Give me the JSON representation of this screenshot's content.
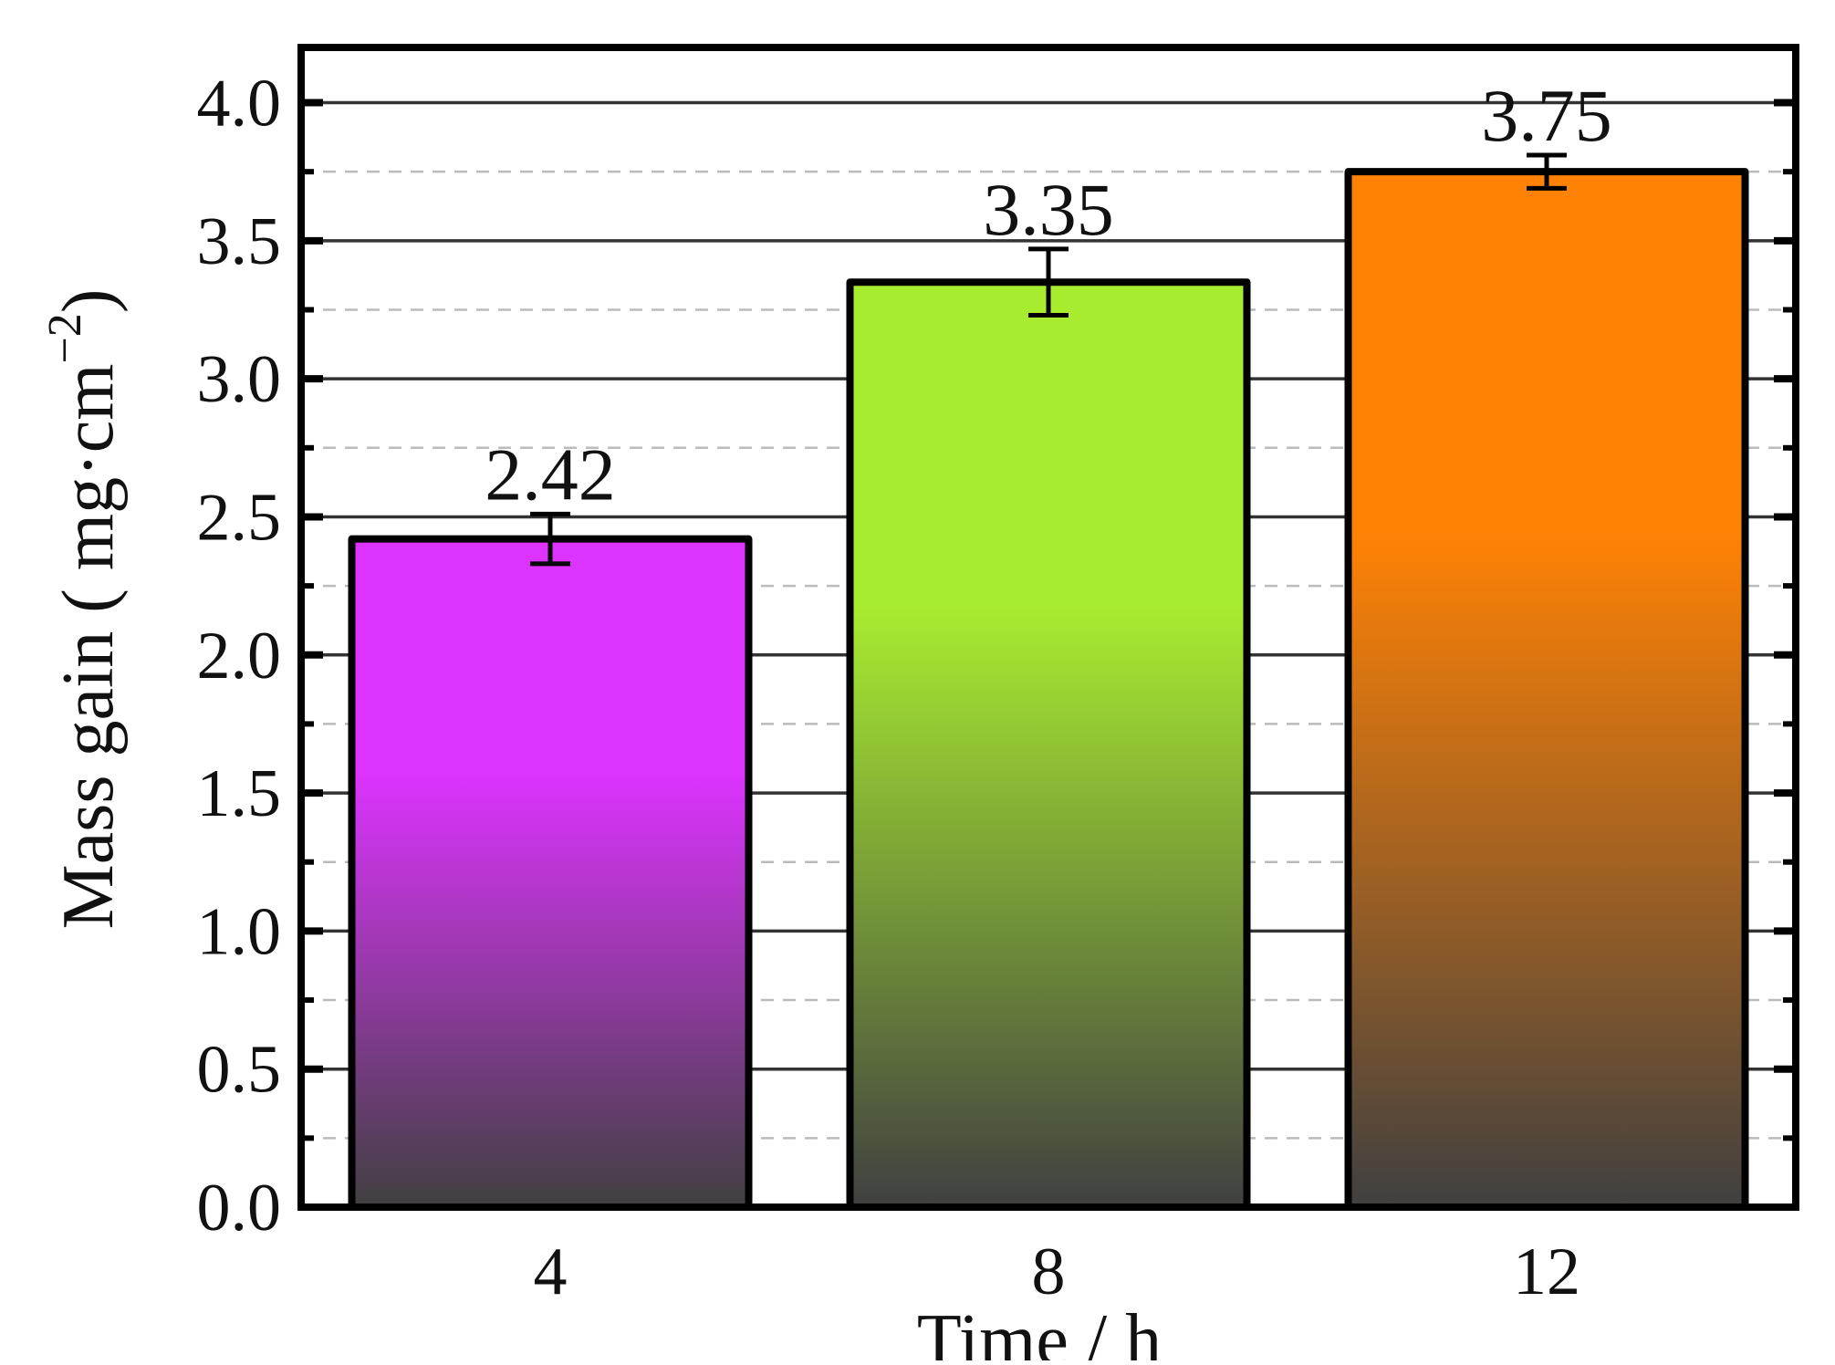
{
  "chart_data": {
    "type": "bar",
    "xlabel": "Time / h",
    "ylabel": "Mass gain ( mg·cm",
    "ylabel_superscript": "−2",
    "ylabel_close": ")",
    "categories": [
      "4",
      "8",
      "12"
    ],
    "values": [
      2.42,
      3.35,
      3.75
    ],
    "value_labels": [
      "2.42",
      "3.35",
      "3.75"
    ],
    "errors": [
      0.09,
      0.12,
      0.06
    ],
    "ylim": [
      0,
      4.2
    ],
    "yticks": [
      0.0,
      0.5,
      1.0,
      1.5,
      2.0,
      2.5,
      3.0,
      3.5,
      4.0
    ],
    "ytick_labels": [
      "0.0",
      "0.5",
      "1.0",
      "1.5",
      "2.0",
      "2.5",
      "3.0",
      "3.5",
      "4.0"
    ],
    "minor_gridlines": [
      0.25,
      0.75,
      1.25,
      1.75,
      2.25,
      2.75,
      3.25,
      3.75
    ],
    "grid": "major solid, minor dashed",
    "colors": {
      "bar_top": [
        "#dd33ff",
        "#a8ec30",
        "#ff8205"
      ],
      "bar_bottom": "#404040",
      "outline": "#000000",
      "major_grid": "#333333",
      "minor_grid": "#bbbbbb"
    }
  }
}
